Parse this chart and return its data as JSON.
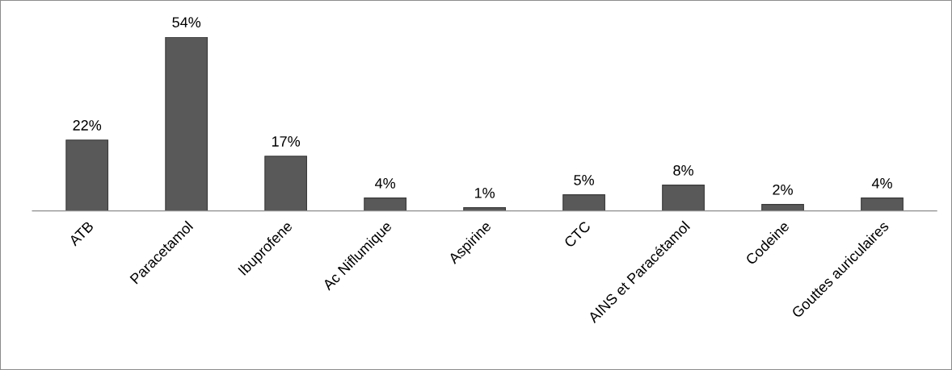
{
  "chart_data": {
    "type": "bar",
    "categories": [
      "ATB",
      "Paracetamol",
      "Ibuprofene",
      "Ac Niflumique",
      "Aspirine",
      "CTC",
      "AINS et Paracétamol",
      "Codeine",
      "Gouttes auriculaires"
    ],
    "values": [
      22,
      54,
      17,
      4,
      1,
      5,
      8,
      2,
      4
    ],
    "value_labels": [
      "22%",
      "54%",
      "17%",
      "4%",
      "1%",
      "5%",
      "8%",
      "2%",
      "4%"
    ],
    "color": "#595959",
    "grid": false,
    "legend": false
  }
}
